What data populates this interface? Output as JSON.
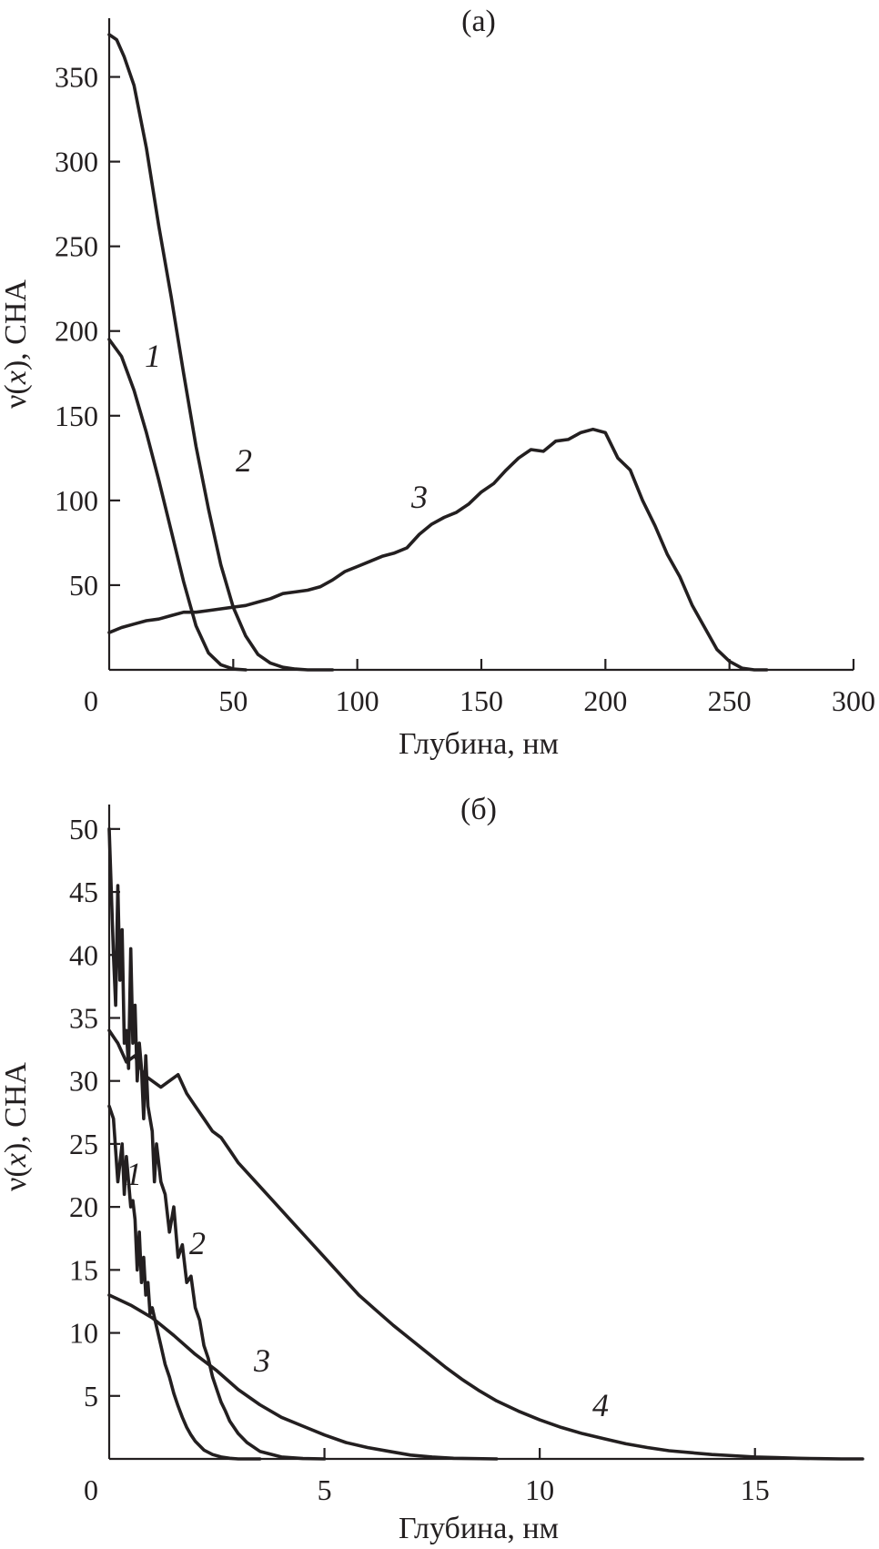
{
  "chart_data": [
    {
      "type": "line",
      "title": "(a)",
      "xlabel": "Глубина, нм",
      "ylabel": {
        "pre": "ν(",
        "var": "x",
        "post": "), СНА"
      },
      "xlim": [
        0,
        300
      ],
      "ylim": [
        0,
        375
      ],
      "xticks": [
        "0",
        "50",
        "100",
        "150",
        "200",
        "250",
        "300"
      ],
      "yticks": [
        "50",
        "100",
        "150",
        "200",
        "250",
        "300",
        "350"
      ],
      "grid": false,
      "color": "#231f20",
      "series": [
        {
          "name": "1",
          "x": [
            0,
            5,
            10,
            15,
            20,
            25,
            30,
            35,
            40,
            45,
            50,
            55
          ],
          "y": [
            195,
            185,
            165,
            140,
            112,
            82,
            52,
            26,
            10,
            3,
            0.5,
            0
          ]
        },
        {
          "name": "2",
          "x": [
            0,
            3,
            6,
            10,
            15,
            20,
            25,
            30,
            35,
            40,
            45,
            50,
            55,
            60,
            65,
            70,
            75,
            80,
            85,
            90
          ],
          "y": [
            375,
            372,
            362,
            345,
            308,
            262,
            220,
            175,
            132,
            95,
            62,
            37,
            20,
            9,
            4,
            1.5,
            0.5,
            0,
            0,
            0
          ]
        },
        {
          "name": "3",
          "x": [
            0,
            5,
            10,
            15,
            20,
            25,
            30,
            35,
            40,
            45,
            50,
            55,
            60,
            65,
            70,
            75,
            80,
            85,
            90,
            95,
            100,
            105,
            110,
            115,
            120,
            125,
            130,
            135,
            140,
            145,
            150,
            155,
            160,
            165,
            170,
            175,
            180,
            185,
            190,
            195,
            200,
            205,
            210,
            215,
            220,
            225,
            230,
            235,
            240,
            245,
            250,
            255,
            260,
            265
          ],
          "y": [
            22,
            25,
            27,
            29,
            30,
            32,
            34,
            34,
            35,
            36,
            37,
            38,
            40,
            42,
            45,
            46,
            47,
            49,
            53,
            58,
            61,
            64,
            67,
            69,
            72,
            80,
            86,
            90,
            93,
            98,
            105,
            110,
            118,
            125,
            130,
            129,
            135,
            136,
            140,
            142,
            140,
            125,
            118,
            100,
            85,
            68,
            55,
            38,
            25,
            12,
            5,
            1,
            0,
            0
          ]
        }
      ],
      "annotations": [
        "1",
        "2",
        "3"
      ]
    },
    {
      "type": "line",
      "title": "(б)",
      "xlabel": "Глубина, нм",
      "ylabel": {
        "pre": "ν(",
        "var": "x",
        "post": "), СНА"
      },
      "xlim": [
        0,
        17.5
      ],
      "ylim": [
        0,
        51
      ],
      "xticks": [
        "0",
        "5",
        "10",
        "15"
      ],
      "yticks": [
        "5",
        "10",
        "15",
        "20",
        "25",
        "30",
        "35",
        "40",
        "45",
        "50"
      ],
      "grid": false,
      "color": "#231f20",
      "series": [
        {
          "name": "1",
          "x": [
            0,
            0.1,
            0.2,
            0.3,
            0.35,
            0.4,
            0.5,
            0.55,
            0.6,
            0.65,
            0.7,
            0.75,
            0.8,
            0.85,
            0.9,
            0.95,
            1.0,
            1.1,
            1.2,
            1.3,
            1.4,
            1.5,
            1.6,
            1.7,
            1.8,
            1.9,
            2.0,
            2.2,
            2.4,
            2.6,
            2.8,
            3.0,
            3.5
          ],
          "y": [
            28,
            27,
            22,
            25,
            21,
            24,
            20,
            20.5,
            19,
            15,
            18,
            14,
            16,
            13,
            14,
            11.5,
            12,
            10.5,
            9,
            7.5,
            6.5,
            5.2,
            4.2,
            3.3,
            2.5,
            1.9,
            1.4,
            0.7,
            0.35,
            0.15,
            0.05,
            0,
            0
          ]
        },
        {
          "name": "2",
          "x": [
            0,
            0.1,
            0.15,
            0.2,
            0.25,
            0.3,
            0.35,
            0.4,
            0.45,
            0.5,
            0.55,
            0.6,
            0.65,
            0.7,
            0.75,
            0.8,
            0.85,
            0.9,
            1.0,
            1.05,
            1.1,
            1.2,
            1.3,
            1.4,
            1.5,
            1.6,
            1.7,
            1.8,
            1.9,
            2.0,
            2.1,
            2.2,
            2.3,
            2.4,
            2.5,
            2.6,
            2.7,
            2.8,
            3.0,
            3.2,
            3.5,
            4.0,
            4.5,
            5.0
          ],
          "y": [
            50,
            40,
            36,
            45.5,
            38,
            42,
            33,
            34,
            31,
            40.5,
            33,
            36,
            30,
            33,
            31,
            27,
            32,
            28,
            26,
            22,
            25,
            22,
            21,
            18,
            20,
            16,
            17,
            14,
            14.5,
            12,
            11,
            9,
            8,
            6.5,
            5.5,
            4.5,
            3.8,
            3,
            2,
            1.3,
            0.6,
            0.15,
            0.03,
            0
          ]
        },
        {
          "name": "3",
          "x": [
            0,
            0.5,
            1.0,
            1.5,
            2.0,
            2.5,
            3.0,
            3.5,
            4.0,
            4.5,
            5.0,
            5.5,
            6.0,
            6.5,
            7.0,
            7.5,
            8.0,
            9.0
          ],
          "y": [
            13,
            12.2,
            11.2,
            9.8,
            8.3,
            7,
            5.5,
            4.3,
            3.3,
            2.6,
            1.9,
            1.3,
            0.9,
            0.6,
            0.3,
            0.15,
            0.05,
            0
          ]
        },
        {
          "name": "4",
          "x": [
            0,
            0.1,
            0.2,
            0.4,
            0.6,
            0.8,
            1.0,
            1.2,
            1.4,
            1.6,
            1.8,
            2.0,
            2.2,
            2.4,
            2.6,
            2.8,
            3.0,
            3.4,
            3.8,
            4.2,
            4.6,
            5.0,
            5.4,
            5.8,
            6.2,
            6.6,
            7.0,
            7.4,
            7.8,
            8.2,
            8.6,
            9.0,
            9.5,
            10.0,
            10.5,
            11.0,
            11.5,
            12.0,
            12.5,
            13.0,
            13.5,
            14.0,
            14.5,
            15.0,
            15.5,
            16.0,
            16.5,
            17.0,
            17.5
          ],
          "y": [
            34,
            33.5,
            33,
            31.5,
            32,
            30.5,
            30,
            29.5,
            30,
            30.5,
            29,
            28,
            27,
            26,
            25.5,
            24.5,
            23.5,
            22,
            20.5,
            19,
            17.5,
            16,
            14.5,
            13,
            11.8,
            10.6,
            9.5,
            8.4,
            7.3,
            6.3,
            5.4,
            4.6,
            3.8,
            3.1,
            2.5,
            2,
            1.6,
            1.2,
            0.9,
            0.65,
            0.5,
            0.35,
            0.25,
            0.15,
            0.1,
            0.05,
            0.02,
            0,
            0
          ]
        }
      ],
      "annotations": [
        "1",
        "2",
        "3",
        "4"
      ]
    }
  ]
}
